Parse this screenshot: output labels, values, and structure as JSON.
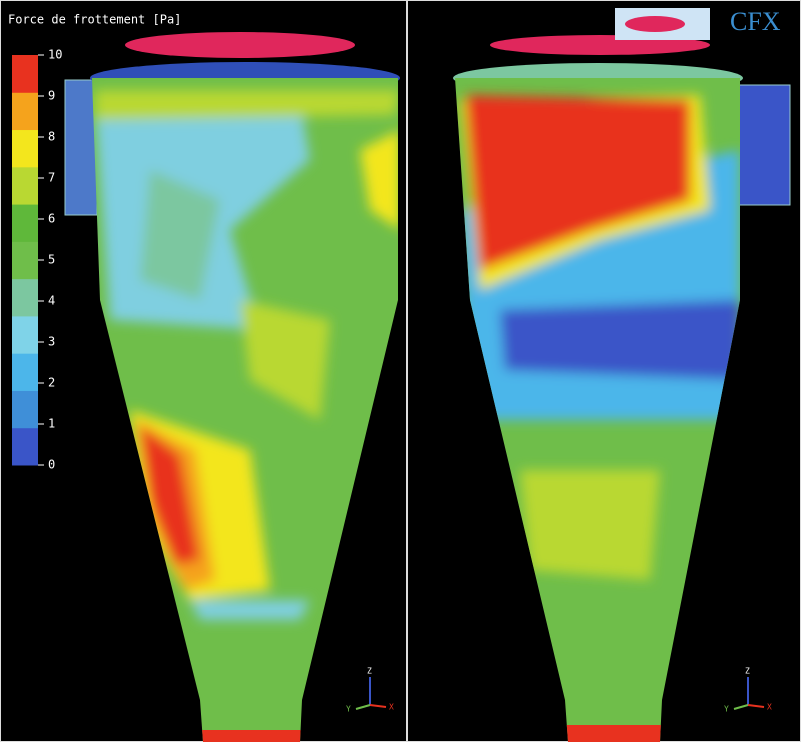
{
  "colorbar": {
    "title": "Force de frottement [Pa]",
    "ticks": [
      0,
      1,
      2,
      3,
      4,
      5,
      6,
      7,
      8,
      9,
      10
    ],
    "colors": [
      "#3a55c8",
      "#3f8fd8",
      "#4cb6ea",
      "#7fd3e8",
      "#7cc7a0",
      "#6fbe4a",
      "#5fb83a",
      "#b9d832",
      "#f3e61d",
      "#f5a31c",
      "#e8321f"
    ]
  },
  "logo": "CFX",
  "triads": [
    {
      "z": "Z",
      "y": "Y",
      "x": "X"
    },
    {
      "z": "Z",
      "y": "Y",
      "x": "X"
    }
  ]
}
